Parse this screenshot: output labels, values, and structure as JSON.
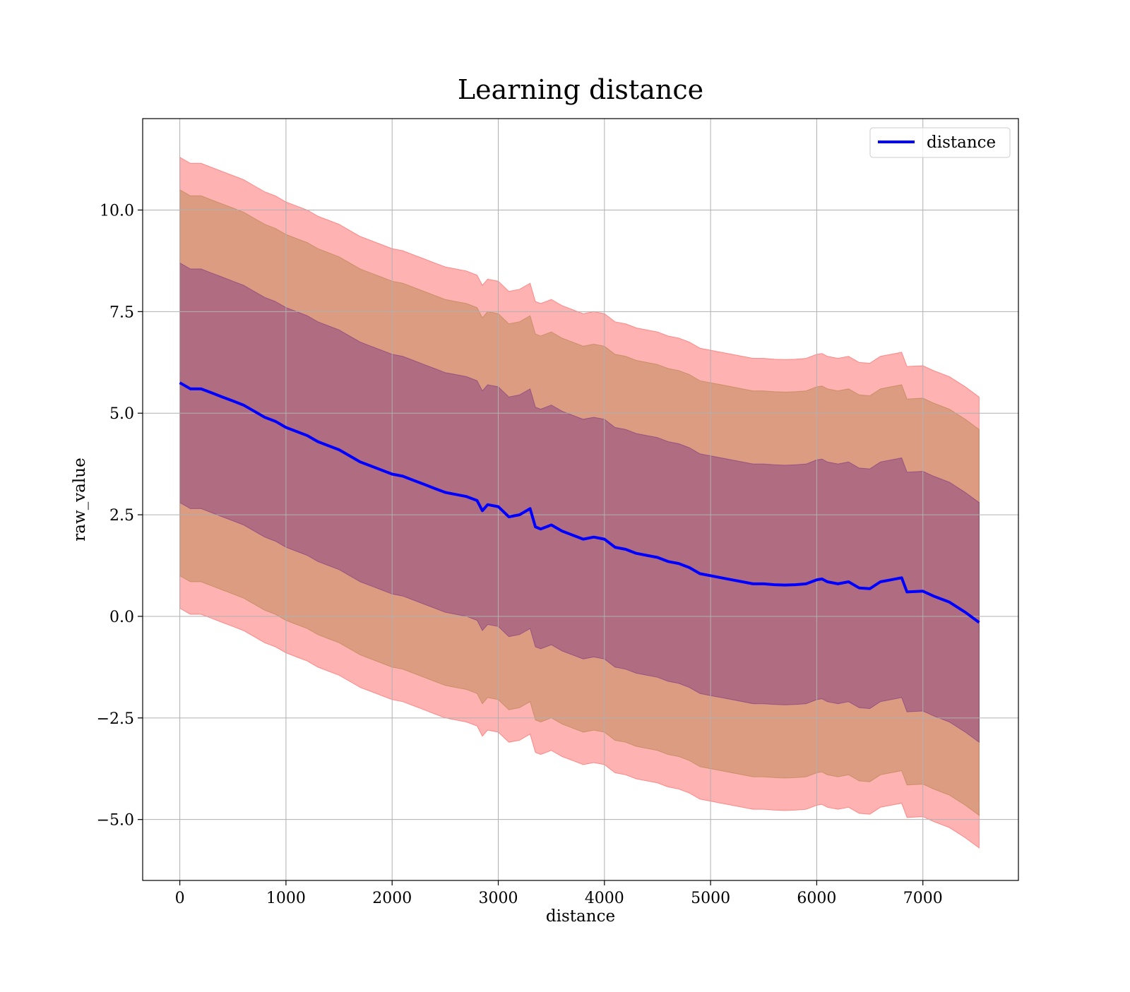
{
  "chart_data": {
    "type": "line",
    "title": "Learning distance",
    "xlabel": "distance",
    "ylabel": "raw_value",
    "xlim": [
      -350,
      7900
    ],
    "ylim": [
      -6.5,
      12.25
    ],
    "xticks": [
      0,
      1000,
      2000,
      3000,
      4000,
      5000,
      6000,
      7000
    ],
    "xtick_labels": [
      "0",
      "1000",
      "2000",
      "3000",
      "4000",
      "5000",
      "6000",
      "7000"
    ],
    "yticks": [
      -5.0,
      -2.5,
      0.0,
      2.5,
      5.0,
      7.5,
      10.0
    ],
    "ytick_labels": [
      "−5.0",
      "−2.5",
      "0.0",
      "2.5",
      "5.0",
      "7.5",
      "10.0"
    ],
    "grid": true,
    "legend": {
      "position": "top-right",
      "entries": [
        "distance"
      ]
    },
    "colors": {
      "line": "#0000ff",
      "band_outer": "#ff0000",
      "band_middle": "#8b6914",
      "band_inner": "#4b0082",
      "grid": "#b0b0b0"
    },
    "series": [
      {
        "name": "distance",
        "x": [
          0,
          100,
          200,
          300,
          400,
          500,
          600,
          700,
          800,
          900,
          1000,
          1100,
          1200,
          1300,
          1400,
          1500,
          1600,
          1700,
          1800,
          1900,
          2000,
          2100,
          2200,
          2300,
          2400,
          2500,
          2600,
          2700,
          2800,
          2850,
          2900,
          3000,
          3100,
          3200,
          3300,
          3350,
          3400,
          3500,
          3600,
          3700,
          3800,
          3900,
          4000,
          4100,
          4200,
          4300,
          4400,
          4500,
          4600,
          4700,
          4800,
          4900,
          5000,
          5100,
          5200,
          5300,
          5400,
          5500,
          5600,
          5700,
          5800,
          5900,
          6000,
          6050,
          6100,
          6200,
          6300,
          6400,
          6500,
          6600,
          6700,
          6800,
          6850,
          7000,
          7100,
          7250,
          7400,
          7530
        ],
        "values": [
          5.75,
          5.6,
          5.6,
          5.5,
          5.4,
          5.3,
          5.2,
          5.05,
          4.9,
          4.8,
          4.65,
          4.55,
          4.45,
          4.3,
          4.2,
          4.1,
          3.95,
          3.8,
          3.7,
          3.6,
          3.5,
          3.45,
          3.35,
          3.25,
          3.15,
          3.05,
          3.0,
          2.95,
          2.85,
          2.6,
          2.75,
          2.7,
          2.45,
          2.5,
          2.65,
          2.2,
          2.15,
          2.25,
          2.1,
          2.0,
          1.9,
          1.95,
          1.9,
          1.7,
          1.65,
          1.55,
          1.5,
          1.45,
          1.35,
          1.3,
          1.2,
          1.05,
          1.0,
          0.95,
          0.9,
          0.85,
          0.8,
          0.8,
          0.78,
          0.77,
          0.78,
          0.8,
          0.9,
          0.92,
          0.85,
          0.8,
          0.85,
          0.7,
          0.68,
          0.85,
          0.9,
          0.95,
          0.6,
          0.62,
          0.5,
          0.35,
          0.1,
          -0.15
        ]
      }
    ],
    "bands": [
      {
        "name": "",
        "half_width": 5.55,
        "opacity": 0.3
      },
      {
        "name": "",
        "half_width": 4.75,
        "opacity": 0.3
      },
      {
        "name": "",
        "half_width": 2.95,
        "opacity": 0.3
      }
    ]
  }
}
